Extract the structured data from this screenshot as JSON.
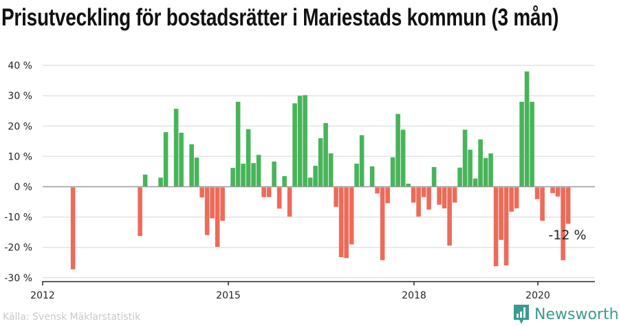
{
  "chart_data": {
    "type": "bar",
    "title": "Prisutveckling för bostadsrätter i Mariestads kommun (3 mån)",
    "xlabel": "",
    "ylabel": "",
    "ylim": [
      -30,
      40
    ],
    "yticks": [
      "40 %",
      "30 %",
      "20 %",
      "10 %",
      "0 %",
      "-10 %",
      "-20 %",
      "-30 %"
    ],
    "ytick_values": [
      40,
      30,
      20,
      10,
      0,
      -10,
      -20,
      -30
    ],
    "xticks": [
      "2012",
      "2015",
      "2018",
      "2020"
    ],
    "grid": true,
    "colors": {
      "positive": "#48b45a",
      "negative": "#ec6b59",
      "grid": "#e3e3e3",
      "zero": "#999999"
    },
    "annotation": "-12 %",
    "points": [
      {
        "month": "2012-06",
        "value": -27
      },
      {
        "month": "2013-07",
        "value": -16
      },
      {
        "month": "2013-08",
        "value": 4
      },
      {
        "month": "2013-11",
        "value": 3
      },
      {
        "month": "2013-12",
        "value": 18
      },
      {
        "month": "2014-02",
        "value": 25.7
      },
      {
        "month": "2014-03",
        "value": 17.8
      },
      {
        "month": "2014-05",
        "value": 14
      },
      {
        "month": "2014-06",
        "value": 9.6
      },
      {
        "month": "2014-07",
        "value": -3.3
      },
      {
        "month": "2014-08",
        "value": -15.7
      },
      {
        "month": "2014-09",
        "value": -10.2
      },
      {
        "month": "2014-10",
        "value": -19.6
      },
      {
        "month": "2014-11",
        "value": -11
      },
      {
        "month": "2015-01",
        "value": 6.2
      },
      {
        "month": "2015-02",
        "value": 28
      },
      {
        "month": "2015-03",
        "value": 7.6
      },
      {
        "month": "2015-04",
        "value": 19
      },
      {
        "month": "2015-05",
        "value": 7.8
      },
      {
        "month": "2015-06",
        "value": 10.5
      },
      {
        "month": "2015-07",
        "value": -3.2
      },
      {
        "month": "2015-08",
        "value": -3.2
      },
      {
        "month": "2015-09",
        "value": 8.3
      },
      {
        "month": "2015-10",
        "value": -7
      },
      {
        "month": "2015-11",
        "value": 3.5
      },
      {
        "month": "2015-12",
        "value": -9.6
      },
      {
        "month": "2016-01",
        "value": 27.5
      },
      {
        "month": "2016-02",
        "value": 30
      },
      {
        "month": "2016-03",
        "value": 30.2
      },
      {
        "month": "2016-04",
        "value": 3
      },
      {
        "month": "2016-05",
        "value": 6.9
      },
      {
        "month": "2016-06",
        "value": 16
      },
      {
        "month": "2016-07",
        "value": 21
      },
      {
        "month": "2016-08",
        "value": 11
      },
      {
        "month": "2016-09",
        "value": -6.4
      },
      {
        "month": "2016-10",
        "value": -23
      },
      {
        "month": "2016-11",
        "value": -23.3
      },
      {
        "month": "2016-12",
        "value": -18.8
      },
      {
        "month": "2017-01",
        "value": 7.6
      },
      {
        "month": "2017-02",
        "value": 17
      },
      {
        "month": "2017-04",
        "value": 6.7
      },
      {
        "month": "2017-05",
        "value": -2
      },
      {
        "month": "2017-06",
        "value": -24
      },
      {
        "month": "2017-07",
        "value": -5.2
      },
      {
        "month": "2017-08",
        "value": 9.7
      },
      {
        "month": "2017-09",
        "value": 24
      },
      {
        "month": "2017-10",
        "value": 18.8
      },
      {
        "month": "2017-11",
        "value": 1
      },
      {
        "month": "2017-12",
        "value": -5
      },
      {
        "month": "2018-01",
        "value": -9.6
      },
      {
        "month": "2018-02",
        "value": -3.2
      },
      {
        "month": "2018-03",
        "value": -7.3
      },
      {
        "month": "2018-04",
        "value": 6.5
      },
      {
        "month": "2018-05",
        "value": -5.7
      },
      {
        "month": "2018-06",
        "value": -6.9
      },
      {
        "month": "2018-07",
        "value": -19.2
      },
      {
        "month": "2018-08",
        "value": -5
      },
      {
        "month": "2018-09",
        "value": 6.3
      },
      {
        "month": "2018-10",
        "value": 18.8
      },
      {
        "month": "2018-11",
        "value": 12.2
      },
      {
        "month": "2018-12",
        "value": 2.7
      },
      {
        "month": "2019-01",
        "value": 15.6
      },
      {
        "month": "2019-02",
        "value": 9.5
      },
      {
        "month": "2019-03",
        "value": 11
      },
      {
        "month": "2019-04",
        "value": -26
      },
      {
        "month": "2019-05",
        "value": -17.3
      },
      {
        "month": "2019-06",
        "value": -25.7
      },
      {
        "month": "2019-07",
        "value": -8
      },
      {
        "month": "2019-08",
        "value": -6.9
      },
      {
        "month": "2019-09",
        "value": 28
      },
      {
        "month": "2019-10",
        "value": 38
      },
      {
        "month": "2019-11",
        "value": 28
      },
      {
        "month": "2019-12",
        "value": -3.9
      },
      {
        "month": "2020-01",
        "value": -11
      },
      {
        "month": "2020-03",
        "value": -1.9
      },
      {
        "month": "2020-04",
        "value": -3
      },
      {
        "month": "2020-05",
        "value": -24
      },
      {
        "month": "2020-06",
        "value": -12
      }
    ]
  },
  "footer": {
    "source": "Källa: Svensk Mäklarstatistik",
    "logo_text": "Newsworthy",
    "logo_icon": "bar-chart-speech-bubble-icon",
    "logo_color": "#3a9a8f"
  }
}
